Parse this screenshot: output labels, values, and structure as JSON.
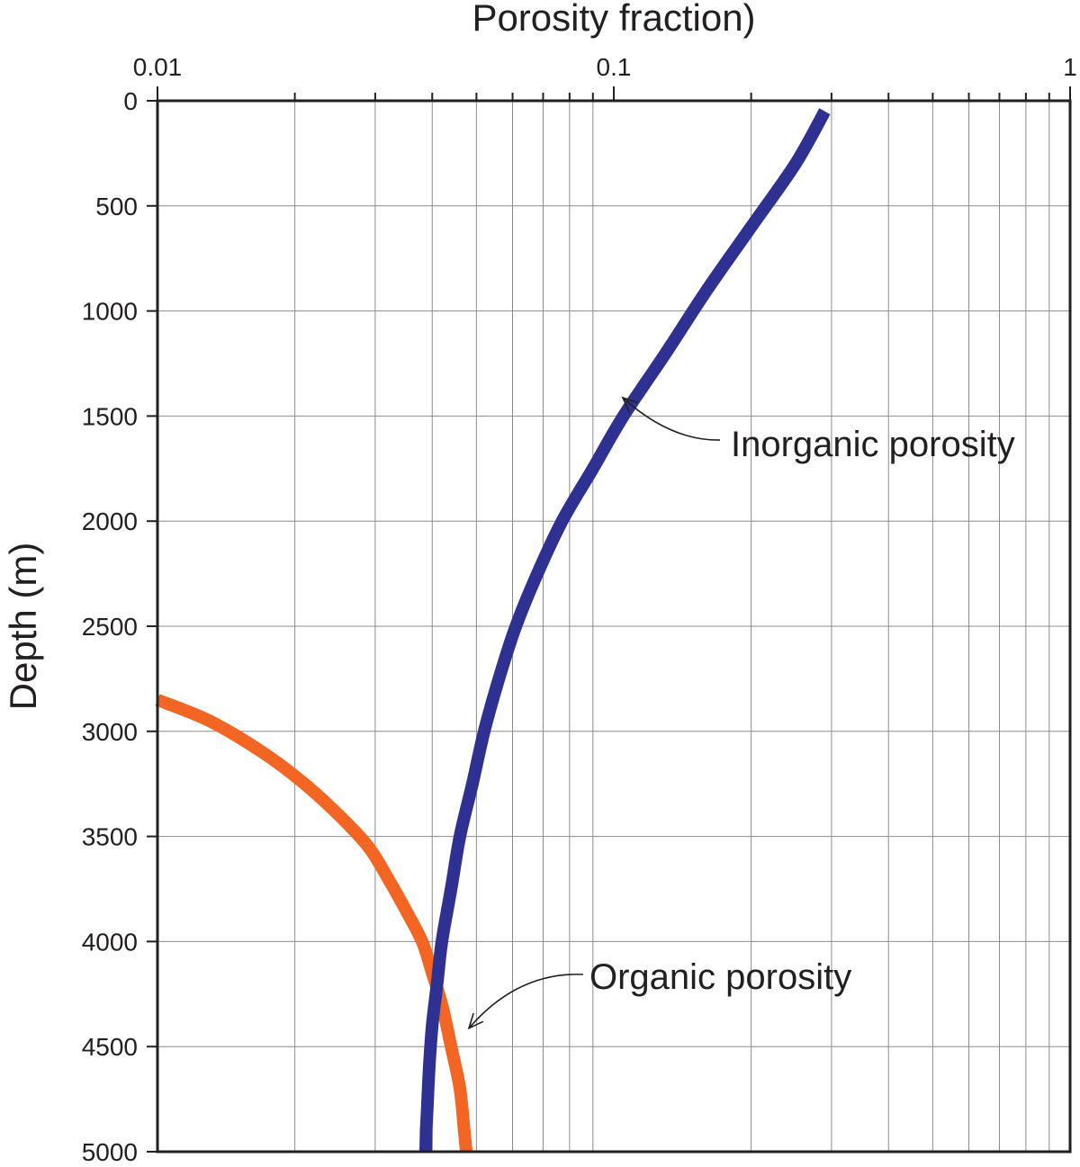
{
  "chart_data": {
    "type": "line",
    "title": "",
    "xlabel": "Porosity fraction)",
    "ylabel": "Depth (m)",
    "x_scale": "log",
    "xlim": [
      0.01,
      1
    ],
    "ylim": [
      0,
      5000
    ],
    "y_inverted": true,
    "x_axis_position": "top",
    "grid": true,
    "x_tick_labels": [
      "0.01",
      "0.1",
      "1"
    ],
    "x_ticks": [
      0.01,
      0.1,
      1
    ],
    "y_ticks": [
      0,
      500,
      1000,
      1500,
      2000,
      2500,
      3000,
      3500,
      4000,
      4500,
      5000
    ],
    "y_tick_labels": [
      "0",
      "500",
      "1000",
      "1500",
      "2000",
      "2500",
      "3000",
      "3500",
      "4000",
      "4500",
      "5000"
    ],
    "series": [
      {
        "name": "Inorganic porosity",
        "color": "#2e3192",
        "x": [
          0.29,
          0.25,
          0.2,
          0.16,
          0.13,
          0.105,
          0.09,
          0.077,
          0.068,
          0.061,
          0.056,
          0.052,
          0.049,
          0.046,
          0.044,
          0.042,
          0.041,
          0.04,
          0.0394,
          0.039,
          0.0388,
          0.0387
        ],
        "y": [
          50,
          300,
          600,
          900,
          1200,
          1500,
          1750,
          2000,
          2250,
          2500,
          2750,
          3000,
          3250,
          3500,
          3750,
          4000,
          4200,
          4400,
          4600,
          4800,
          4900,
          5000
        ]
      },
      {
        "name": "Organic porosity",
        "color": "#f26522",
        "x": [
          0.01,
          0.013,
          0.017,
          0.021,
          0.025,
          0.029,
          0.032,
          0.035,
          0.038,
          0.04,
          0.042,
          0.044,
          0.046,
          0.047,
          0.0475
        ],
        "y": [
          2850,
          2950,
          3100,
          3250,
          3400,
          3550,
          3700,
          3850,
          4000,
          4150,
          4300,
          4500,
          4700,
          4900,
          5000
        ]
      }
    ],
    "annotations": [
      {
        "text": "Inorganic porosity",
        "target_series": "Inorganic porosity",
        "points_to": {
          "x": 0.1,
          "y": 1400
        }
      },
      {
        "text": "Organic porosity",
        "target_series": "Organic porosity",
        "points_to": {
          "x": 0.046,
          "y": 4400
        }
      }
    ]
  }
}
